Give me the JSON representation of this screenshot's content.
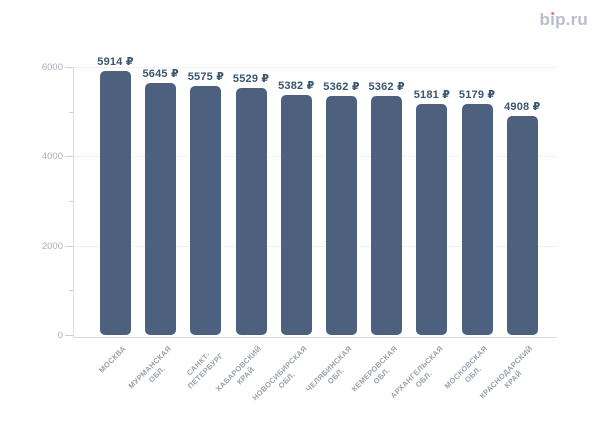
{
  "logo": {
    "text": "bip.ru",
    "part_b": "b",
    "part_i_dotless": "ı",
    "part_rest": "p.ru",
    "color": "#b9bdcf",
    "dot_color": "#e7756d"
  },
  "chart_data": {
    "type": "bar",
    "title": "",
    "xlabel": "",
    "ylabel": "",
    "value_suffix": " ₽",
    "categories": [
      [
        "МОСКВА"
      ],
      [
        "МУРМАНСКАЯ",
        "ОБЛ."
      ],
      [
        "САНКТ-",
        "ПЕТЕРБУРГ"
      ],
      [
        "ХАБАРОВСКИЙ",
        "КРАЙ"
      ],
      [
        "НОВОСИБИРСКАЯ",
        "ОБЛ."
      ],
      [
        "ЧЕЛЯБИНСКАЯ",
        "ОБЛ."
      ],
      [
        "КЕМЕРОВСКАЯ",
        "ОБЛ."
      ],
      [
        "АРХАНГЕЛЬСКАЯ",
        "ОБЛ."
      ],
      [
        "МОСКОВСКАЯ",
        "ОБЛ."
      ],
      [
        "КРАСНОДАРСКИЙ",
        "КРАЙ"
      ]
    ],
    "values": [
      5914,
      5645,
      5575,
      5529,
      5382,
      5362,
      5362,
      5181,
      5179,
      4908
    ],
    "value_labels": [
      "5914 ₽",
      "5645 ₽",
      "5575 ₽",
      "5529 ₽",
      "5382 ₽",
      "5362 ₽",
      "5362 ₽",
      "5181 ₽",
      "5179 ₽",
      "4908 ₽"
    ],
    "ylim": [
      0,
      6000
    ],
    "yticks_labeled": [
      0,
      2000,
      4000,
      6000
    ],
    "yticks_minor": [
      1000,
      3000,
      5000
    ],
    "grid": "horizontal dotted at labeled ticks",
    "legend": "none",
    "colors": {
      "bar": "#4d617e",
      "value_label": "#3b556f",
      "category_label": "#9aa0ab",
      "tick_label": "#a6adbb",
      "gridline": "#e2e5ea",
      "axis": "#d9dce2"
    }
  }
}
